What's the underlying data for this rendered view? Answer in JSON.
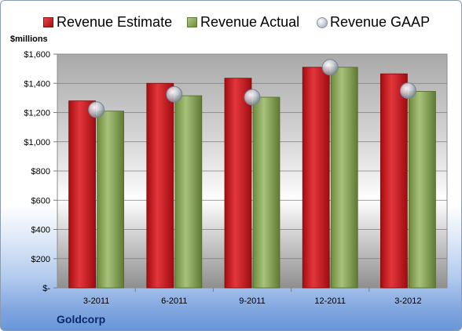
{
  "chart_data": {
    "type": "bar",
    "company": "Goldcorp",
    "unit_label": "$millions",
    "categories": [
      "3-2011",
      "6-2011",
      "9-2011",
      "12-2011",
      "3-2012"
    ],
    "series": [
      {
        "name": "Revenue Estimate",
        "kind": "bar",
        "color": "#c5161c",
        "values": [
          1280,
          1400,
          1435,
          1510,
          1465
        ]
      },
      {
        "name": "Revenue Actual",
        "kind": "bar",
        "color": "#8fac5c",
        "values": [
          1210,
          1315,
          1305,
          1510,
          1345
        ]
      },
      {
        "name": "Revenue GAAP",
        "kind": "marker",
        "color": "#c9ced6",
        "values": [
          1220,
          1325,
          1305,
          1510,
          1350
        ]
      }
    ],
    "ylim": [
      0,
      1600
    ],
    "yticks": [
      0,
      200,
      400,
      600,
      800,
      1000,
      1200,
      1400,
      1600
    ],
    "ytick_labels": [
      "$-",
      "$200",
      "$400",
      "$600",
      "$800",
      "$1,000",
      "$1,200",
      "$1,400",
      "$1,600"
    ],
    "grid": true,
    "legend_position": "top"
  }
}
